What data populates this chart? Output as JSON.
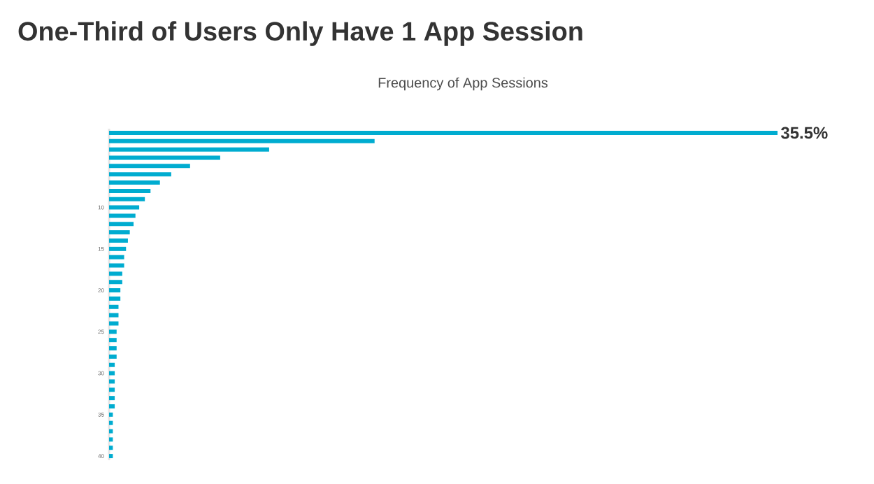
{
  "chart_data": {
    "type": "bar",
    "orientation": "horizontal",
    "title": "One-Third of Users Only Have 1 App Session",
    "subtitle": "Frequency of App Sessions",
    "categories": [
      null,
      null,
      null,
      null,
      null,
      null,
      null,
      null,
      null,
      "10",
      null,
      null,
      null,
      null,
      "15",
      null,
      null,
      null,
      null,
      "20",
      null,
      null,
      null,
      null,
      "25",
      null,
      null,
      null,
      null,
      "30",
      null,
      null,
      null,
      null,
      "35",
      null,
      null,
      null,
      null,
      "40"
    ],
    "values": [
      35.5,
      14.1,
      8.5,
      5.9,
      4.3,
      3.3,
      2.7,
      2.2,
      1.9,
      1.6,
      1.4,
      1.3,
      1.1,
      1.0,
      0.9,
      0.8,
      0.8,
      0.7,
      0.7,
      0.6,
      0.6,
      0.5,
      0.5,
      0.5,
      0.4,
      0.4,
      0.4,
      0.4,
      0.3,
      0.3,
      0.3,
      0.3,
      0.3,
      0.3,
      0.2,
      0.2,
      0.2,
      0.2,
      0.2,
      0.2
    ],
    "color": "#00acd0",
    "value_labels": [
      "35.5%",
      null,
      null,
      null,
      null,
      null,
      null,
      null,
      null,
      null,
      null,
      null,
      null,
      null,
      null,
      null,
      null,
      null,
      null,
      null,
      null,
      null,
      null,
      null,
      null,
      null,
      null,
      null,
      null,
      null,
      null,
      null,
      null,
      null,
      null,
      null,
      null,
      null,
      null,
      null
    ]
  }
}
